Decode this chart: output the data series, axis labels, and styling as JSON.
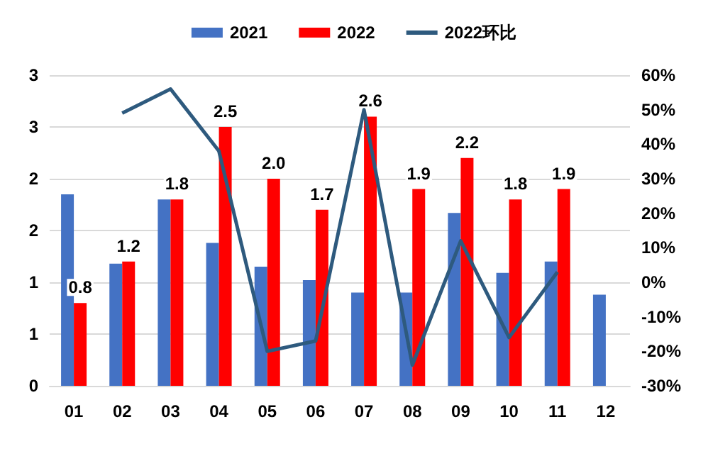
{
  "chart_data": {
    "type": "bar",
    "categories": [
      "01",
      "02",
      "03",
      "04",
      "05",
      "06",
      "07",
      "08",
      "09",
      "10",
      "11",
      "12"
    ],
    "series": [
      {
        "name": "2021",
        "color": "#4472c4",
        "values": [
          1.85,
          1.18,
          1.8,
          1.38,
          1.15,
          1.02,
          0.9,
          0.9,
          1.67,
          1.09,
          1.2,
          0.88
        ]
      },
      {
        "name": "2022",
        "color": "#ff0000",
        "values": [
          0.8,
          1.2,
          1.8,
          2.5,
          2.0,
          1.7,
          2.6,
          1.9,
          2.2,
          1.8,
          1.9,
          null
        ],
        "value_labels": [
          "0.8",
          "1.2",
          "1.8",
          "2.5",
          "2.0",
          "1.7",
          "2.6",
          "1.9",
          "2.2",
          "1.8",
          "1.9",
          null
        ]
      },
      {
        "name": "2022环比",
        "type": "line",
        "axis": "y2",
        "color": "#2e5a7e",
        "values": [
          null,
          49,
          56,
          38,
          -20,
          -17,
          50,
          -24,
          12,
          -16,
          3,
          null
        ]
      }
    ],
    "ylim": [
      0,
      3
    ],
    "yticks": [
      0,
      {
        "value": 0.5,
        "label": "1"
      },
      1,
      {
        "value": 1.5,
        "label": "2"
      },
      2,
      {
        "value": 2.5,
        "label": "3"
      },
      3
    ],
    "y2lim": [
      -30,
      60
    ],
    "y2ticks": [
      {
        "value": -30,
        "label": "-30%"
      },
      {
        "value": -20,
        "label": "-20%"
      },
      {
        "value": -10,
        "label": "-10%"
      },
      {
        "value": 0,
        "label": "0%"
      },
      {
        "value": 10,
        "label": "10%"
      },
      {
        "value": 20,
        "label": "20%"
      },
      {
        "value": 30,
        "label": "30%"
      },
      {
        "value": 40,
        "label": "40%"
      },
      {
        "value": 50,
        "label": "50%"
      },
      {
        "value": 60,
        "label": "60%"
      }
    ],
    "grid": "y",
    "legend": "top",
    "marker": "none",
    "line_style": "solid"
  }
}
